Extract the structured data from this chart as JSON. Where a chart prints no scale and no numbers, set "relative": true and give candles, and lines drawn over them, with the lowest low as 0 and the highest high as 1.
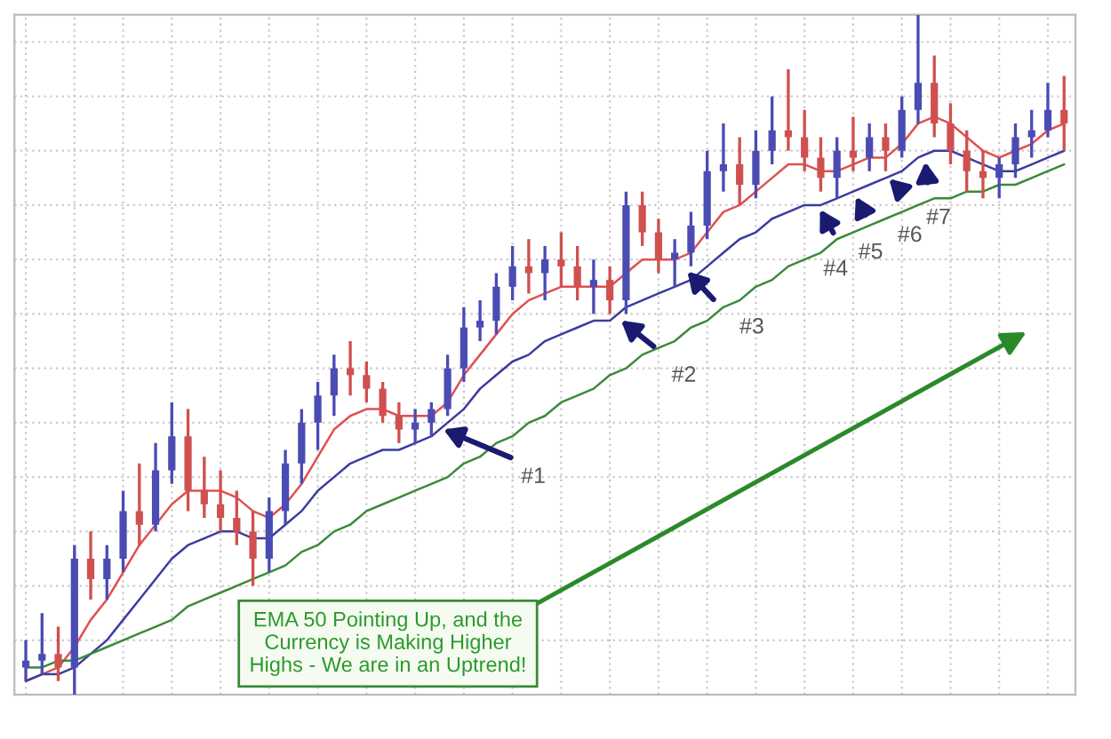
{
  "chart_data": {
    "type": "candlestick",
    "relative": true,
    "grid": true,
    "tick_labels": false,
    "categories": [
      null,
      null,
      null,
      null,
      null,
      null,
      null,
      null,
      null,
      null,
      null,
      null,
      null,
      null,
      null,
      null,
      null,
      null,
      null,
      null,
      null,
      null,
      null,
      null,
      null,
      null,
      null,
      null,
      null,
      null,
      null,
      null,
      null,
      null,
      null,
      null,
      null,
      null,
      null,
      null,
      null,
      null,
      null,
      null,
      null,
      null,
      null,
      null,
      null,
      null,
      null,
      null,
      null,
      null,
      null,
      null,
      null,
      null,
      null,
      null,
      null,
      null,
      null,
      null,
      null
    ],
    "ohlc": [
      [
        0.04,
        0.08,
        0.02,
        0.05
      ],
      [
        0.05,
        0.12,
        0.03,
        0.06
      ],
      [
        0.06,
        0.1,
        0.02,
        0.04
      ],
      [
        0.04,
        0.22,
        0.0,
        0.2
      ],
      [
        0.2,
        0.24,
        0.14,
        0.17
      ],
      [
        0.17,
        0.22,
        0.14,
        0.2
      ],
      [
        0.2,
        0.3,
        0.18,
        0.27
      ],
      [
        0.27,
        0.34,
        0.22,
        0.25
      ],
      [
        0.25,
        0.37,
        0.24,
        0.33
      ],
      [
        0.33,
        0.43,
        0.31,
        0.38
      ],
      [
        0.38,
        0.42,
        0.27,
        0.3
      ],
      [
        0.3,
        0.35,
        0.26,
        0.28
      ],
      [
        0.28,
        0.33,
        0.24,
        0.26
      ],
      [
        0.26,
        0.3,
        0.22,
        0.24
      ],
      [
        0.24,
        0.27,
        0.16,
        0.2
      ],
      [
        0.2,
        0.29,
        0.18,
        0.27
      ],
      [
        0.27,
        0.36,
        0.25,
        0.34
      ],
      [
        0.34,
        0.42,
        0.31,
        0.4
      ],
      [
        0.4,
        0.46,
        0.36,
        0.44
      ],
      [
        0.44,
        0.5,
        0.41,
        0.48
      ],
      [
        0.48,
        0.52,
        0.44,
        0.47
      ],
      [
        0.47,
        0.49,
        0.43,
        0.45
      ],
      [
        0.45,
        0.46,
        0.4,
        0.41
      ],
      [
        0.41,
        0.43,
        0.37,
        0.39
      ],
      [
        0.39,
        0.42,
        0.37,
        0.4
      ],
      [
        0.4,
        0.43,
        0.38,
        0.42
      ],
      [
        0.42,
        0.5,
        0.41,
        0.48
      ],
      [
        0.48,
        0.57,
        0.46,
        0.54
      ],
      [
        0.54,
        0.58,
        0.52,
        0.55
      ],
      [
        0.55,
        0.62,
        0.53,
        0.6
      ],
      [
        0.6,
        0.66,
        0.58,
        0.63
      ],
      [
        0.63,
        0.67,
        0.59,
        0.62
      ],
      [
        0.62,
        0.66,
        0.58,
        0.64
      ],
      [
        0.64,
        0.68,
        0.6,
        0.63
      ],
      [
        0.63,
        0.66,
        0.58,
        0.6
      ],
      [
        0.6,
        0.64,
        0.56,
        0.61
      ],
      [
        0.61,
        0.63,
        0.56,
        0.58
      ],
      [
        0.58,
        0.74,
        0.56,
        0.72
      ],
      [
        0.72,
        0.74,
        0.66,
        0.68
      ],
      [
        0.68,
        0.7,
        0.62,
        0.64
      ],
      [
        0.64,
        0.67,
        0.6,
        0.65
      ],
      [
        0.65,
        0.71,
        0.63,
        0.69
      ],
      [
        0.69,
        0.8,
        0.67,
        0.77
      ],
      [
        0.77,
        0.84,
        0.74,
        0.78
      ],
      [
        0.78,
        0.82,
        0.72,
        0.75
      ],
      [
        0.75,
        0.83,
        0.73,
        0.8
      ],
      [
        0.8,
        0.88,
        0.78,
        0.83
      ],
      [
        0.83,
        0.92,
        0.8,
        0.82
      ],
      [
        0.82,
        0.86,
        0.77,
        0.79
      ],
      [
        0.79,
        0.82,
        0.74,
        0.76
      ],
      [
        0.76,
        0.82,
        0.73,
        0.8
      ],
      [
        0.8,
        0.85,
        0.77,
        0.79
      ],
      [
        0.79,
        0.84,
        0.77,
        0.82
      ],
      [
        0.82,
        0.84,
        0.77,
        0.8
      ],
      [
        0.8,
        0.88,
        0.79,
        0.86
      ],
      [
        0.86,
        1.0,
        0.84,
        0.9
      ],
      [
        0.9,
        0.94,
        0.82,
        0.84
      ],
      [
        0.84,
        0.87,
        0.78,
        0.8
      ],
      [
        0.8,
        0.83,
        0.74,
        0.77
      ],
      [
        0.77,
        0.8,
        0.73,
        0.76
      ],
      [
        0.76,
        0.79,
        0.73,
        0.78
      ],
      [
        0.78,
        0.84,
        0.76,
        0.82
      ],
      [
        0.82,
        0.86,
        0.79,
        0.83
      ],
      [
        0.83,
        0.9,
        0.82,
        0.86
      ],
      [
        0.86,
        0.91,
        0.8,
        0.84
      ]
    ],
    "colors": [
      "#4b4bb4",
      "#4b4bb4",
      "#d05050",
      "#4b4bb4",
      "#d05050",
      "#4b4bb4",
      "#4b4bb4",
      "#d05050",
      "#4b4bb4",
      "#4b4bb4",
      "#d05050",
      "#d05050",
      "#d05050",
      "#d05050",
      "#d05050",
      "#4b4bb4",
      "#4b4bb4",
      "#4b4bb4",
      "#4b4bb4",
      "#4b4bb4",
      "#d05050",
      "#d05050",
      "#d05050",
      "#d05050",
      "#4b4bb4",
      "#4b4bb4",
      "#4b4bb4",
      "#4b4bb4",
      "#4b4bb4",
      "#4b4bb4",
      "#4b4bb4",
      "#d05050",
      "#4b4bb4",
      "#d05050",
      "#d05050",
      "#4b4bb4",
      "#d05050",
      "#4b4bb4",
      "#d05050",
      "#d05050",
      "#4b4bb4",
      "#4b4bb4",
      "#4b4bb4",
      "#4b4bb4",
      "#d05050",
      "#4b4bb4",
      "#4b4bb4",
      "#d05050",
      "#d05050",
      "#d05050",
      "#4b4bb4",
      "#d05050",
      "#4b4bb4",
      "#d05050",
      "#4b4bb4",
      "#4b4bb4",
      "#d05050",
      "#d05050",
      "#d05050",
      "#d05050",
      "#4b4bb4",
      "#4b4bb4",
      "#4b4bb4",
      "#4b4bb4",
      "#d05050"
    ],
    "series": [
      {
        "type": "line",
        "color": "#e05050",
        "values": [
          0.02,
          0.03,
          0.04,
          0.07,
          0.11,
          0.14,
          0.18,
          0.22,
          0.25,
          0.28,
          0.3,
          0.3,
          0.3,
          0.29,
          0.27,
          0.26,
          0.28,
          0.31,
          0.35,
          0.39,
          0.41,
          0.42,
          0.42,
          0.41,
          0.41,
          0.41,
          0.43,
          0.47,
          0.5,
          0.53,
          0.56,
          0.58,
          0.59,
          0.6,
          0.6,
          0.6,
          0.6,
          0.62,
          0.64,
          0.64,
          0.64,
          0.65,
          0.68,
          0.71,
          0.72,
          0.74,
          0.76,
          0.78,
          0.78,
          0.77,
          0.77,
          0.78,
          0.79,
          0.79,
          0.81,
          0.84,
          0.85,
          0.84,
          0.82,
          0.8,
          0.79,
          0.8,
          0.81,
          0.83,
          0.84
        ]
      },
      {
        "type": "line",
        "color": "#3c3ca0",
        "values": [
          0.02,
          0.03,
          0.03,
          0.04,
          0.06,
          0.08,
          0.11,
          0.14,
          0.17,
          0.2,
          0.22,
          0.23,
          0.24,
          0.24,
          0.23,
          0.23,
          0.25,
          0.27,
          0.3,
          0.32,
          0.34,
          0.35,
          0.36,
          0.36,
          0.37,
          0.38,
          0.4,
          0.42,
          0.45,
          0.47,
          0.49,
          0.5,
          0.52,
          0.53,
          0.54,
          0.55,
          0.55,
          0.57,
          0.58,
          0.59,
          0.6,
          0.61,
          0.63,
          0.65,
          0.67,
          0.68,
          0.7,
          0.71,
          0.72,
          0.72,
          0.73,
          0.74,
          0.75,
          0.76,
          0.77,
          0.79,
          0.8,
          0.8,
          0.79,
          0.78,
          0.77,
          0.77,
          0.78,
          0.79,
          0.8
        ]
      },
      {
        "type": "line",
        "color": "#3a8a3a",
        "values": [
          0.04,
          0.04,
          0.05,
          0.05,
          0.06,
          0.07,
          0.08,
          0.09,
          0.1,
          0.11,
          0.13,
          0.14,
          0.15,
          0.16,
          0.17,
          0.18,
          0.19,
          0.21,
          0.22,
          0.24,
          0.25,
          0.27,
          0.28,
          0.29,
          0.3,
          0.31,
          0.32,
          0.34,
          0.35,
          0.37,
          0.38,
          0.4,
          0.41,
          0.43,
          0.44,
          0.45,
          0.47,
          0.48,
          0.5,
          0.51,
          0.52,
          0.54,
          0.55,
          0.57,
          0.58,
          0.6,
          0.61,
          0.63,
          0.64,
          0.65,
          0.67,
          0.68,
          0.69,
          0.7,
          0.71,
          0.72,
          0.73,
          0.73,
          0.74,
          0.74,
          0.75,
          0.75,
          0.76,
          0.77,
          0.78
        ]
      }
    ],
    "annotations": [
      "#1",
      "#2",
      "#3",
      "#4",
      "#5",
      "#6",
      "#7",
      "EMA 50 Pointing Up, and the\nCurrency is Making Higher\nHighs - We are in an Uptrend!"
    ]
  }
}
